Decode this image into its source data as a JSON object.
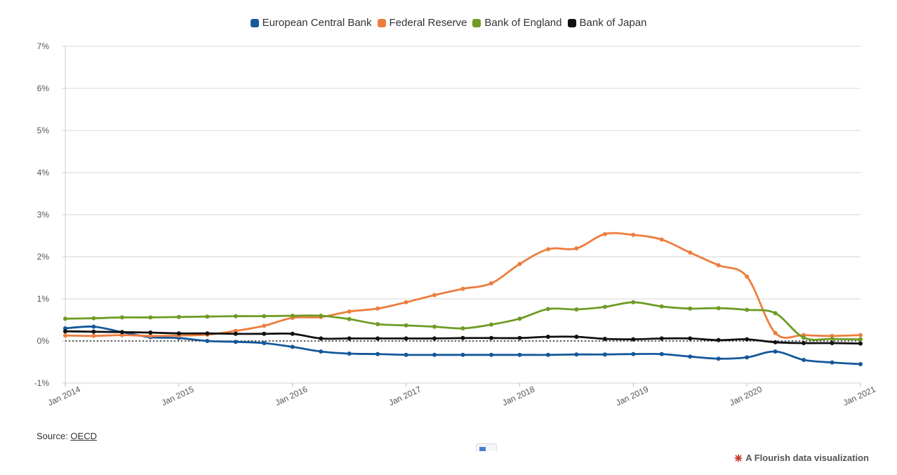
{
  "chart_data": {
    "type": "line",
    "x": [
      "2014-01",
      "2014-04",
      "2014-07",
      "2014-10",
      "2015-01",
      "2015-04",
      "2015-07",
      "2015-10",
      "2016-01",
      "2016-04",
      "2016-07",
      "2016-10",
      "2017-01",
      "2017-04",
      "2017-07",
      "2017-10",
      "2018-01",
      "2018-04",
      "2018-07",
      "2018-10",
      "2019-01",
      "2019-04",
      "2019-07",
      "2019-10",
      "2020-01",
      "2020-04",
      "2020-07",
      "2020-10",
      "2021-01"
    ],
    "x_ticks": [
      "Jan 2014",
      "Jan 2015",
      "Jan 2016",
      "Jan 2017",
      "Jan 2018",
      "Jan 2019",
      "Jan 2020",
      "Jan 2021"
    ],
    "y_ticks": [
      "-1%",
      "0%",
      "1%",
      "2%",
      "3%",
      "4%",
      "5%",
      "6%",
      "7%"
    ],
    "ylim": [
      -1,
      7
    ],
    "grid": true,
    "zero_line": "dotted",
    "legend_position": "top-center",
    "series": [
      {
        "name": "European Central Bank",
        "color": "#15589b",
        "values": [
          0.3,
          0.34,
          0.21,
          0.09,
          0.07,
          0.0,
          -0.02,
          -0.05,
          -0.14,
          -0.25,
          -0.3,
          -0.31,
          -0.33,
          -0.33,
          -0.33,
          -0.33,
          -0.33,
          -0.33,
          -0.32,
          -0.32,
          -0.31,
          -0.31,
          -0.37,
          -0.42,
          -0.39,
          -0.25,
          -0.45,
          -0.51,
          -0.55
        ]
      },
      {
        "name": "Federal Reserve",
        "color": "#ed7d3e",
        "values": [
          0.13,
          0.12,
          0.14,
          0.12,
          0.13,
          0.15,
          0.24,
          0.36,
          0.55,
          0.57,
          0.7,
          0.77,
          0.92,
          1.09,
          1.24,
          1.37,
          1.83,
          2.18,
          2.2,
          2.54,
          2.52,
          2.41,
          2.1,
          1.8,
          1.53,
          0.19,
          0.14,
          0.12,
          0.14
        ]
      },
      {
        "name": "Bank of England",
        "color": "#6f9b24",
        "values": [
          0.53,
          0.54,
          0.56,
          0.56,
          0.57,
          0.58,
          0.59,
          0.59,
          0.6,
          0.6,
          0.52,
          0.4,
          0.37,
          0.34,
          0.3,
          0.39,
          0.53,
          0.76,
          0.75,
          0.81,
          0.92,
          0.82,
          0.77,
          0.78,
          0.74,
          0.66,
          0.08,
          0.05,
          0.04
        ]
      },
      {
        "name": "Bank of Japan",
        "color": "#111111",
        "values": [
          0.23,
          0.22,
          0.21,
          0.2,
          0.18,
          0.18,
          0.17,
          0.17,
          0.17,
          0.06,
          0.06,
          0.06,
          0.06,
          0.06,
          0.07,
          0.07,
          0.07,
          0.1,
          0.1,
          0.05,
          0.04,
          0.06,
          0.06,
          0.02,
          0.04,
          -0.03,
          -0.05,
          -0.05,
          -0.06
        ]
      }
    ]
  },
  "footer": {
    "source_label": "Source: ",
    "source_link": "OECD",
    "branding": "A Flourish data visualization"
  }
}
